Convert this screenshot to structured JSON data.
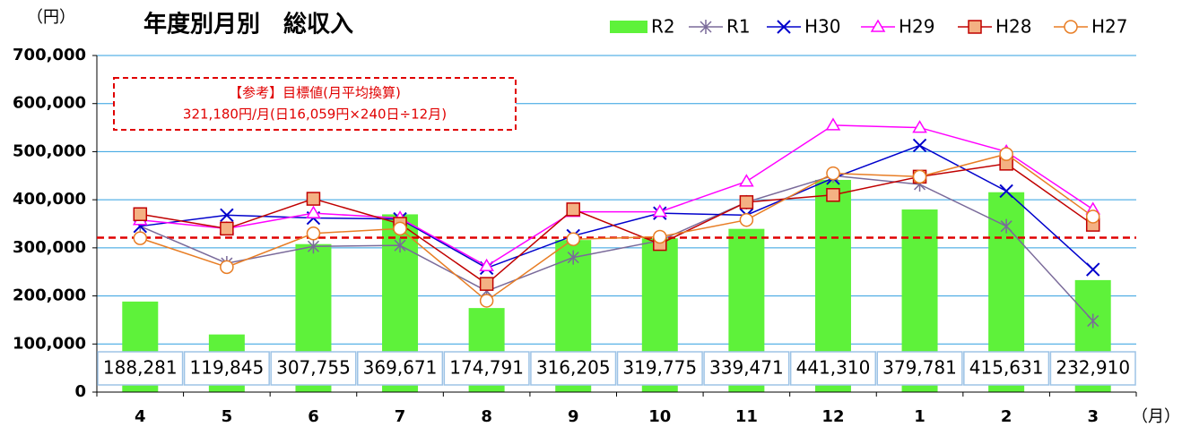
{
  "chart_data": {
    "type": "bar_line",
    "title": "年度別月別　総収入",
    "y_unit": "（円）",
    "x_unit": "（月）",
    "categories": [
      "4",
      "5",
      "6",
      "7",
      "8",
      "9",
      "10",
      "11",
      "12",
      "1",
      "2",
      "3"
    ],
    "ylim": [
      0,
      700000
    ],
    "yticks": [
      0,
      {
        "value": 100000,
        "label": "100,000"
      },
      {
        "value": 200000,
        "label": "200,000"
      },
      {
        "value": 300000,
        "label": "300,000"
      },
      {
        "value": 400000,
        "label": "400,000"
      },
      {
        "value": 500000,
        "label": "500,000"
      },
      {
        "value": 600000,
        "label": "600,000"
      },
      {
        "value": 700000,
        "label": "700,000"
      }
    ],
    "grid": true,
    "series": [
      {
        "name": "R2",
        "type": "bar",
        "color": "#5ef23a",
        "values": [
          188281,
          119845,
          307755,
          369671,
          174791,
          316205,
          319775,
          339471,
          441310,
          379781,
          415631,
          232910
        ],
        "value_labels": [
          "188,281",
          "119,845",
          "307,755",
          "369,671",
          "174,791",
          "316,205",
          "319,775",
          "339,471",
          "441,310",
          "379,781",
          "415,631",
          "232,910"
        ]
      },
      {
        "name": "R1",
        "type": "line",
        "color": "#7a6a9a",
        "marker": "star",
        "values": [
          345000,
          268000,
          303000,
          305000,
          210000,
          280000,
          315000,
          395000,
          450000,
          432000,
          345000,
          148000
        ]
      },
      {
        "name": "H30",
        "type": "line",
        "color": "#0000cc",
        "marker": "x",
        "values": [
          345000,
          368000,
          362000,
          360000,
          258000,
          325000,
          372000,
          368000,
          445000,
          513000,
          418000,
          255000
        ]
      },
      {
        "name": "H29",
        "type": "line",
        "color": "#ff00ff",
        "marker": "triangle",
        "values": [
          358000,
          340000,
          372000,
          362000,
          262000,
          375000,
          375000,
          438000,
          555000,
          550000,
          500000,
          380000
        ]
      },
      {
        "name": "H28",
        "type": "line",
        "color": "#c00000",
        "marker": "square",
        "marker_fill": "#f4b183",
        "values": [
          370000,
          340000,
          402000,
          350000,
          225000,
          380000,
          308000,
          395000,
          410000,
          448000,
          475000,
          348000
        ]
      },
      {
        "name": "H27",
        "type": "line",
        "color": "#e87d24",
        "marker": "circle",
        "marker_fill": "#ffffff",
        "values": [
          320000,
          260000,
          330000,
          340000,
          190000,
          318000,
          323000,
          358000,
          455000,
          448000,
          495000,
          365000
        ]
      }
    ],
    "annotation": {
      "lines": [
        "【参考】目標値(月平均換算)",
        "321,180円/月(日16,059円×240日÷12月)"
      ],
      "value": 321180,
      "color": "#e00000"
    }
  }
}
